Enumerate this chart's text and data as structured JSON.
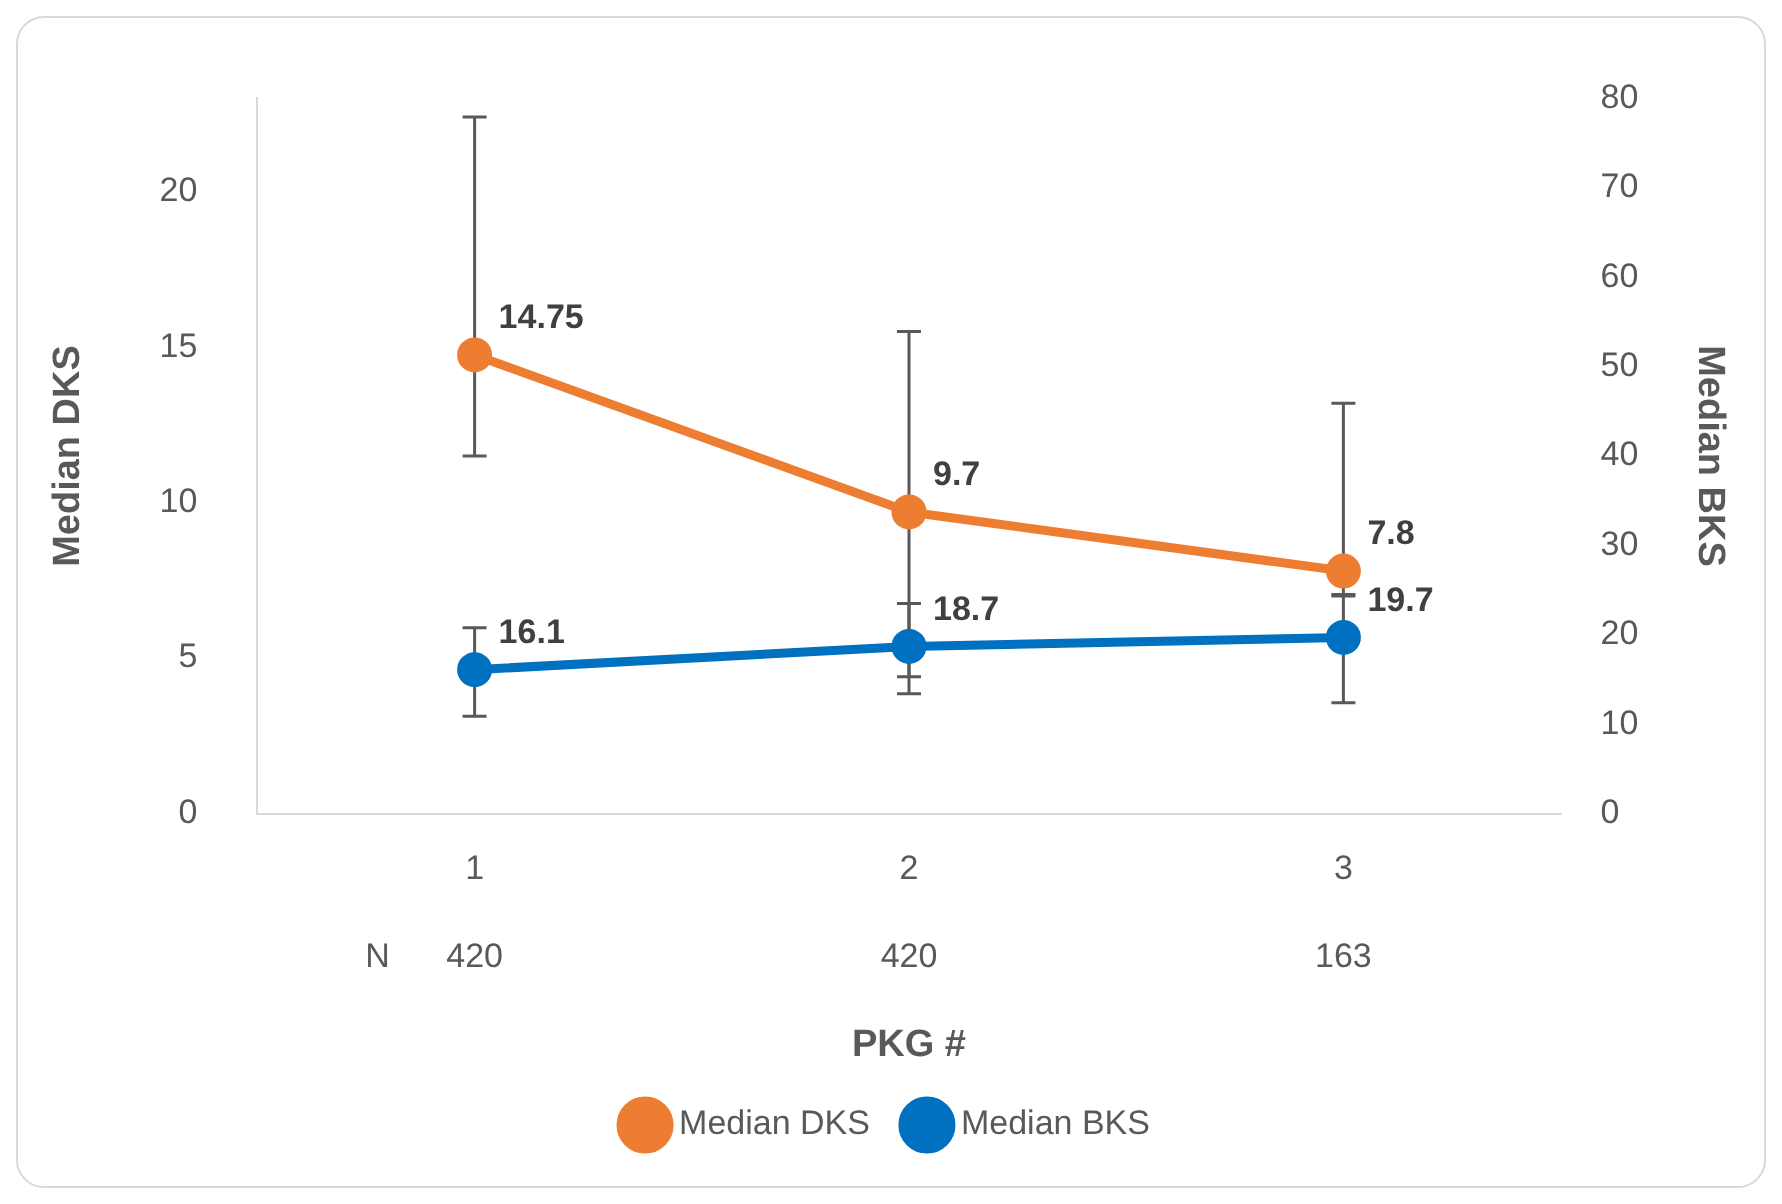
{
  "chart_data": {
    "type": "line",
    "xlabel": "PKG #",
    "ylabel": "Median DKS",
    "y2label": "Median BKS",
    "categories": [
      "1",
      "2",
      "3"
    ],
    "series": [
      {
        "name": "Median DKS",
        "color": "#ed7d31",
        "values": [
          14.75,
          9.7,
          7.8
        ],
        "errors": [
          [
            11.5,
            22.4
          ],
          [
            4.4,
            15.5
          ],
          [
            7.0,
            13.2
          ]
        ]
      },
      {
        "name": "Median BKS",
        "color": "#0070c0",
        "axis": "y2",
        "values": [
          16.1,
          18.7,
          19.7
        ],
        "errors": [
          [
            10.9,
            20.8
          ],
          [
            13.4,
            23.5
          ],
          [
            12.4,
            24.5
          ]
        ]
      }
    ],
    "ylim": [
      0,
      23
    ],
    "yticks": [
      0,
      5,
      10,
      15,
      20
    ],
    "y2lim": [
      0,
      80
    ],
    "y2ticks": [
      0,
      10,
      20,
      30,
      40,
      50,
      60,
      70,
      80
    ],
    "annotations": [
      "N",
      "420",
      "420",
      "163"
    ],
    "data_labels": true,
    "grid": false,
    "legend": "bottom",
    "marker": "circle",
    "line_style": "solid"
  }
}
